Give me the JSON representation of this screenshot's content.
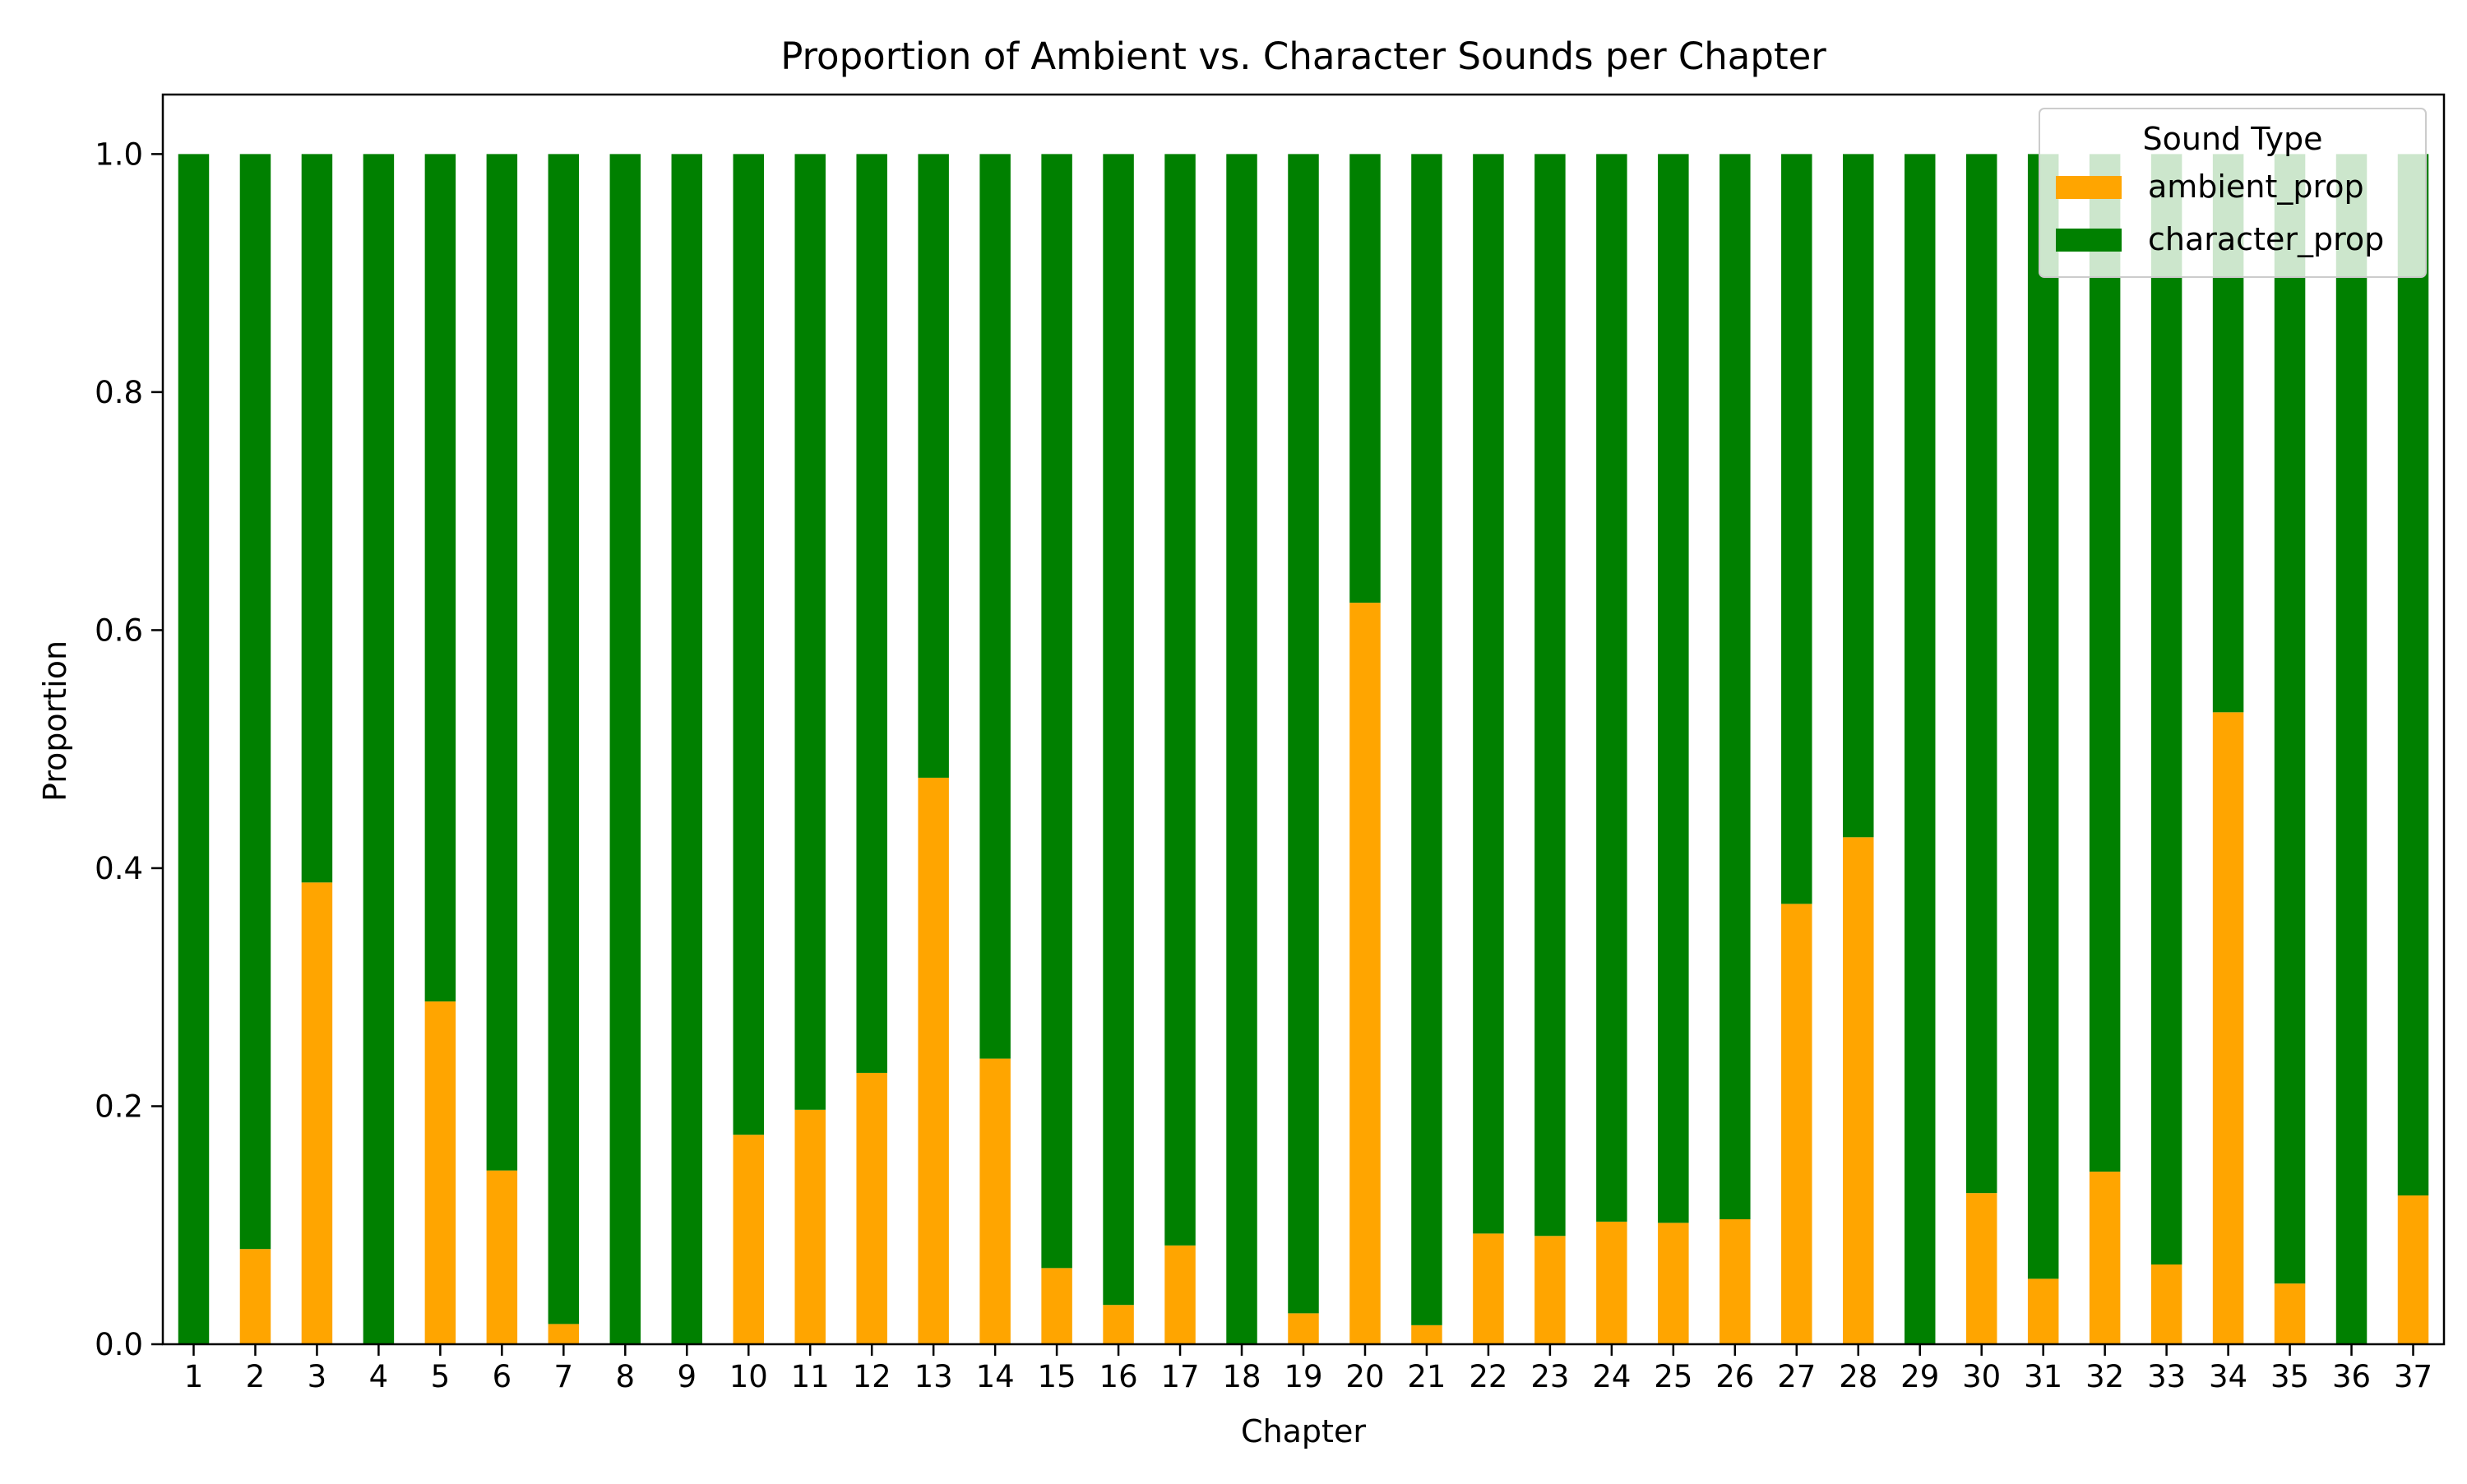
{
  "chart_data": {
    "type": "bar",
    "stacked": true,
    "title": "Proportion of Ambient vs. Character Sounds per Chapter",
    "xlabel": "Chapter",
    "ylabel": "Proportion",
    "ylim": [
      0,
      1.05
    ],
    "yticks": [
      0.0,
      0.2,
      0.4,
      0.6,
      0.8,
      1.0
    ],
    "ytick_labels": [
      "0.0",
      "0.2",
      "0.4",
      "0.6",
      "0.8",
      "1.0"
    ],
    "grid": false,
    "legend": {
      "title": "Sound Type",
      "placement": "top-right"
    },
    "categories": [
      "1",
      "2",
      "3",
      "4",
      "5",
      "6",
      "7",
      "8",
      "9",
      "10",
      "11",
      "12",
      "13",
      "14",
      "15",
      "16",
      "17",
      "18",
      "19",
      "20",
      "21",
      "22",
      "23",
      "24",
      "25",
      "26",
      "27",
      "28",
      "29",
      "30",
      "31",
      "32",
      "33",
      "34",
      "35",
      "36",
      "37"
    ],
    "series": [
      {
        "name": "ambient_prop",
        "color": "#ffa500",
        "values": [
          0.0,
          0.08,
          0.388,
          0.0,
          0.288,
          0.146,
          0.017,
          0.0,
          0.0,
          0.176,
          0.197,
          0.228,
          0.476,
          0.24,
          0.064,
          0.033,
          0.083,
          0.0,
          0.026,
          0.623,
          0.016,
          0.093,
          0.091,
          0.103,
          0.102,
          0.105,
          0.37,
          0.426,
          0.0,
          0.127,
          0.055,
          0.145,
          0.067,
          0.531,
          0.051,
          0.0,
          0.125
        ]
      },
      {
        "name": "character_prop",
        "color": "#008000",
        "values": [
          1.0,
          0.92,
          0.612,
          1.0,
          0.712,
          0.854,
          0.983,
          1.0,
          1.0,
          0.824,
          0.803,
          0.772,
          0.524,
          0.76,
          0.936,
          0.967,
          0.917,
          1.0,
          0.974,
          0.377,
          0.984,
          0.907,
          0.909,
          0.897,
          0.898,
          0.895,
          0.63,
          0.574,
          1.0,
          0.873,
          0.945,
          0.855,
          0.933,
          0.469,
          0.949,
          1.0,
          0.875
        ]
      }
    ]
  }
}
